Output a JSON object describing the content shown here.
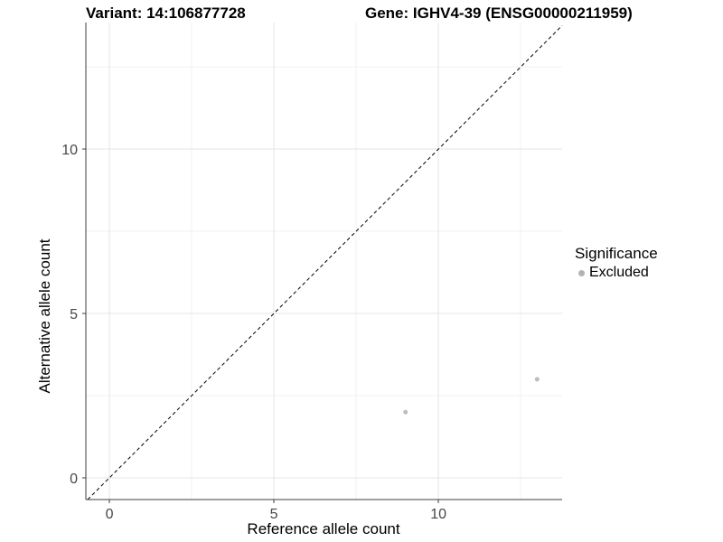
{
  "colors": {
    "background": "#ffffff",
    "grid_major": "#e4e4e4",
    "grid_minor": "#f2f2f2",
    "axis_line": "#3c3c3c",
    "tick_label": "#474747",
    "point": "#bdbdbd",
    "reference_line": "#000000"
  },
  "chart_data": {
    "type": "scatter",
    "title_left": "Variant: 14:106877728",
    "title_right": "Gene: IGHV4-39 (ENSG00000211959)",
    "xlabel": "Reference allele count",
    "ylabel": "Alternative allele count",
    "xlim": [
      -0.715,
      13.76
    ],
    "ylim": [
      -0.66,
      13.85
    ],
    "x_major_ticks": [
      0,
      5,
      10
    ],
    "y_major_ticks": [
      0,
      5,
      10
    ],
    "x_minor_ticks": [
      2.5,
      7.5,
      12.5
    ],
    "y_minor_ticks": [
      2.5,
      7.5,
      12.5
    ],
    "grid": "major and minor, light gray on white",
    "reference_line": {
      "type": "abline",
      "slope": 1,
      "intercept": 0,
      "style": "dashed"
    },
    "series": [
      {
        "name": "Excluded",
        "color": "#bdbdbd",
        "points": [
          {
            "x": 9,
            "y": 2
          },
          {
            "x": 13,
            "y": 3
          }
        ]
      }
    ],
    "legend": {
      "title": "Significance",
      "position": "right",
      "entries": [
        {
          "label": "Excluded",
          "color": "#b3b3b3"
        }
      ]
    }
  }
}
